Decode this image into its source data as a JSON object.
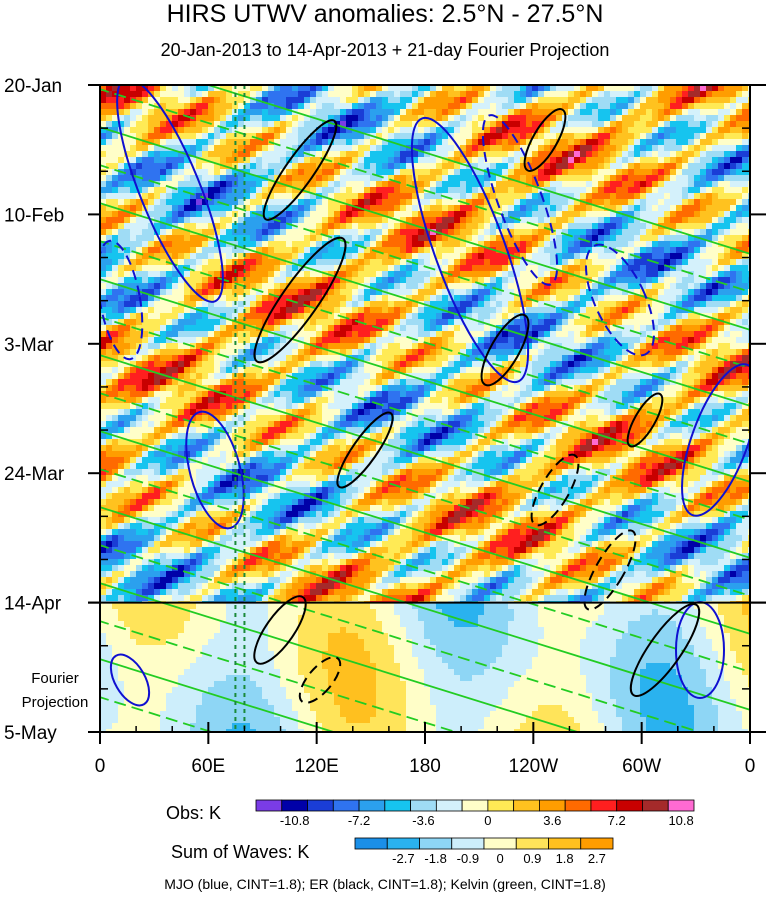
{
  "title": "HIRS UTWV anomalies: 2.5°N - 27.5°N",
  "subtitle": "20-Jan-2013 to 14-Apr-2013 + 21-day Fourier Projection",
  "chart_data": {
    "type": "heatmap",
    "title": "HIRS UTWV anomalies: 2.5°N - 27.5°N",
    "subtitle": "20-Jan-2013 to 14-Apr-2013 + 21-day Fourier Projection",
    "x_tick_labels": [
      "0",
      "60E",
      "120E",
      "180",
      "120W",
      "60W",
      "0"
    ],
    "y_tick_labels": [
      "20-Jan",
      "10-Feb",
      "3-Mar",
      "24-Mar",
      "14-Apr",
      "5-May"
    ],
    "projection_label": [
      "Fourier",
      "Projection"
    ],
    "obs_colorbar": {
      "label": "Obs: K",
      "tick_labels": [
        "-10.8",
        "-7.2",
        "-3.6",
        "0",
        "3.6",
        "7.2",
        "10.8"
      ],
      "colors": [
        "#7a3ce6",
        "#0000a8",
        "#1a3dd6",
        "#2f73f0",
        "#2ba0ee",
        "#16c4ef",
        "#9fdcf5",
        "#d4f1fb",
        "#fffec8",
        "#ffea55",
        "#ffc21f",
        "#ff9d00",
        "#ff6a00",
        "#ff1f1f",
        "#c80000",
        "#a52a2a",
        "#ff6ad2"
      ]
    },
    "waves_colorbar": {
      "label": "Sum of Waves: K",
      "tick_labels": [
        "-2.7",
        "-1.8",
        "-0.9",
        "0",
        "0.9",
        "1.8",
        "2.7"
      ],
      "colors": [
        "#1a8fe8",
        "#2ab2ef",
        "#8ed6f5",
        "#cdeefb",
        "#fffec8",
        "#ffe45a",
        "#ffc01f",
        "#ff9d00"
      ]
    },
    "legend_text": "MJO (blue, CINT=1.8); ER (black, CINT=1.8); Kelvin (green, CINT=1.8)",
    "series_colors": {
      "MJO": "#1010d0",
      "ER": "#000000",
      "Kelvin": "#22cc22"
    },
    "reference_lines": {
      "horizontal_at": "14-Apr",
      "vertical_dotted_longitudes_deg": [
        75,
        80
      ]
    }
  }
}
